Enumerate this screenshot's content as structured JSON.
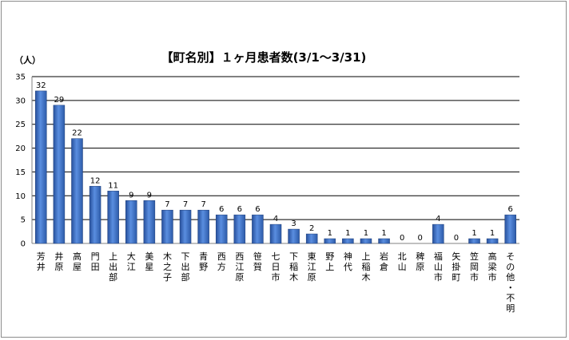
{
  "chart_data": {
    "type": "bar",
    "title": "【町名別】１ヶ月患者数(3/1～3/31)",
    "ylabel": "（人）",
    "xlabel": "",
    "ylim": [
      0,
      35
    ],
    "yticks": [
      0,
      5,
      10,
      15,
      20,
      25,
      30,
      35
    ],
    "grid": true,
    "bar_color": "#3a6cc0",
    "categories": [
      "芳井",
      "井原",
      "高屋",
      "門田",
      "上出部",
      "大江",
      "美星",
      "木之子",
      "下出部",
      "青野",
      "西方",
      "西江原",
      "笹賀",
      "七日市",
      "下稲木",
      "東江原",
      "野上",
      "神代",
      "上稲木",
      "岩倉",
      "北山",
      "稗原",
      "福山市",
      "矢掛町",
      "笠岡市",
      "高梁市",
      "その他・不明"
    ],
    "values": [
      32,
      29,
      22,
      12,
      11,
      9,
      9,
      7,
      7,
      7,
      6,
      6,
      6,
      4,
      3,
      2,
      1,
      1,
      1,
      1,
      0,
      0,
      4,
      0,
      1,
      1,
      6
    ]
  }
}
